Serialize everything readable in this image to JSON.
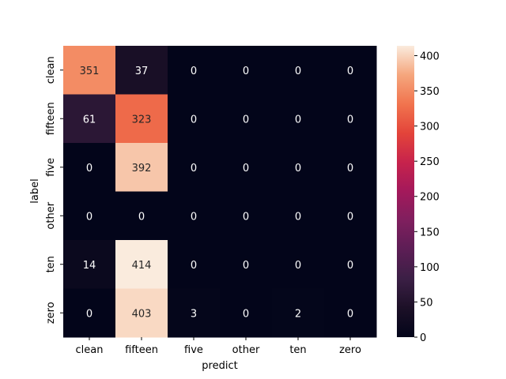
{
  "chart_data": {
    "type": "heatmap",
    "xlabel": "predict",
    "ylabel": "label",
    "x_categories": [
      "clean",
      "fifteen",
      "five",
      "other",
      "ten",
      "zero"
    ],
    "y_categories": [
      "clean",
      "fifteen",
      "five",
      "other",
      "ten",
      "zero"
    ],
    "values": [
      [
        351,
        37,
        0,
        0,
        0,
        0
      ],
      [
        61,
        323,
        0,
        0,
        0,
        0
      ],
      [
        0,
        392,
        0,
        0,
        0,
        0
      ],
      [
        0,
        0,
        0,
        0,
        0,
        0
      ],
      [
        14,
        414,
        0,
        0,
        0,
        0
      ],
      [
        0,
        403,
        3,
        0,
        2,
        0
      ]
    ],
    "colorbar": {
      "colormap": "rocket",
      "min": 0,
      "max": 414,
      "ticks": [
        0,
        50,
        100,
        150,
        200,
        250,
        300,
        350,
        400
      ]
    }
  }
}
